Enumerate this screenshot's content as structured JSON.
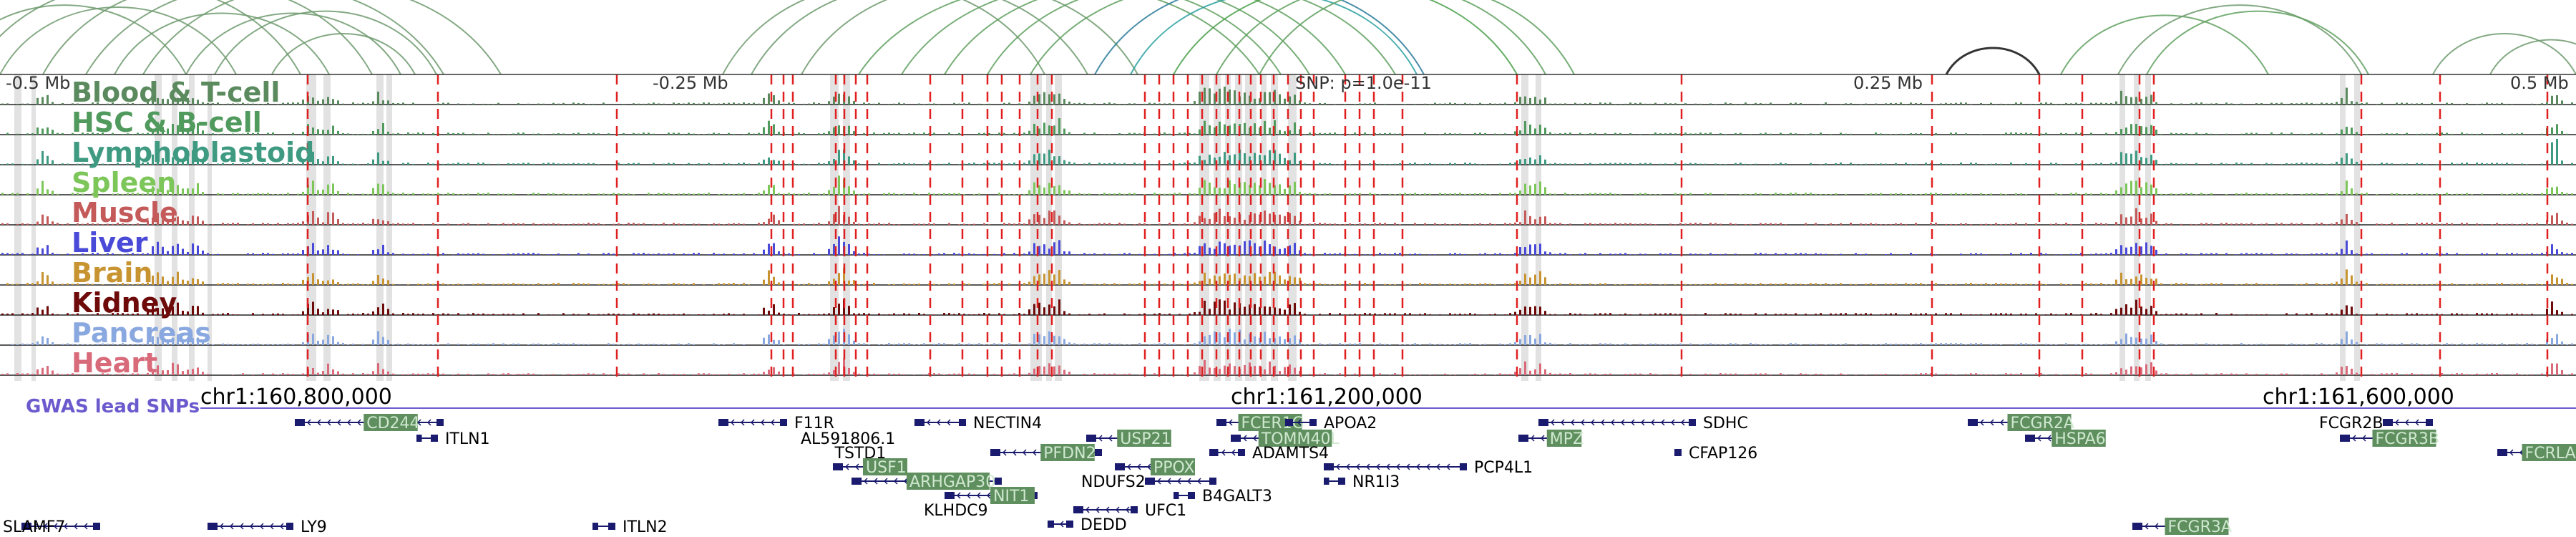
{
  "ruler": {
    "marks": [
      "-0.5 Mb",
      "-0.25 Mb",
      "SNP: p=1.0e-11",
      "0.25 Mb",
      "0.5 Mb"
    ]
  },
  "tracks": [
    {
      "name": "Blood & T-cell",
      "color": "#5a8a5e"
    },
    {
      "name": "HSC & B-cell",
      "color": "#4f9a5c"
    },
    {
      "name": "Lymphoblastoid",
      "color": "#3f9a82"
    },
    {
      "name": "Spleen",
      "color": "#7dc65a"
    },
    {
      "name": "Muscle",
      "color": "#c45a5a"
    },
    {
      "name": "Liver",
      "color": "#4a4ad8"
    },
    {
      "name": "Brain",
      "color": "#c89432"
    },
    {
      "name": "Kidney",
      "color": "#6e0a0a"
    },
    {
      "name": "Pancreas",
      "color": "#8aa8e0"
    },
    {
      "name": "Heart",
      "color": "#d86a7a"
    }
  ],
  "gwas_label": "GWAS lead SNPs",
  "coordinates": [
    "chr1:160,800,000",
    "chr1:161,200,000",
    "chr1:161,600,000"
  ],
  "genes": [
    {
      "name": "CD244",
      "hl": true
    },
    {
      "name": "ITLN1",
      "hl": false
    },
    {
      "name": "F11R",
      "hl": false
    },
    {
      "name": "AL591806.1",
      "hl": false
    },
    {
      "name": "TSTD1",
      "hl": false
    },
    {
      "name": "USF1",
      "hl": true
    },
    {
      "name": "ARHGAP30",
      "hl": true
    },
    {
      "name": "NIT1",
      "hl": true
    },
    {
      "name": "NECTIN4",
      "hl": false
    },
    {
      "name": "PFDN2",
      "hl": true
    },
    {
      "name": "USP21",
      "hl": true
    },
    {
      "name": "FCER1G",
      "hl": true
    },
    {
      "name": "APOA2",
      "hl": false
    },
    {
      "name": "TOMM40L",
      "hl": true
    },
    {
      "name": "ADAMTS4",
      "hl": false
    },
    {
      "name": "PPOX",
      "hl": true
    },
    {
      "name": "NDUFS2",
      "hl": false
    },
    {
      "name": "B4GALT3",
      "hl": false
    },
    {
      "name": "PCP4L1",
      "hl": false
    },
    {
      "name": "NR1I3",
      "hl": false
    },
    {
      "name": "KLHDC9",
      "hl": false
    },
    {
      "name": "UFC1",
      "hl": false
    },
    {
      "name": "DEDD",
      "hl": false
    },
    {
      "name": "SDHC",
      "hl": false
    },
    {
      "name": "MPZ",
      "hl": true
    },
    {
      "name": "CFAP126",
      "hl": false
    },
    {
      "name": "FCGR2A",
      "hl": true
    },
    {
      "name": "HSPA6",
      "hl": true
    },
    {
      "name": "FCGR2B",
      "hl": false
    },
    {
      "name": "FCGR3B",
      "hl": true
    },
    {
      "name": "FCRLA",
      "hl": true
    },
    {
      "name": "FCGR3A",
      "hl": true
    },
    {
      "name": "SLAMF7",
      "hl": false
    },
    {
      "name": "LY9",
      "hl": false
    },
    {
      "name": "ITLN2",
      "hl": false
    }
  ],
  "colors": {
    "arc": "#6e9a6e",
    "snp_line": "#e02020",
    "shade": "#e2e2e2",
    "gene": "#1a1a6e",
    "gene_hl_bg": "#5f8f5f",
    "gwas": "#6a5acd"
  }
}
